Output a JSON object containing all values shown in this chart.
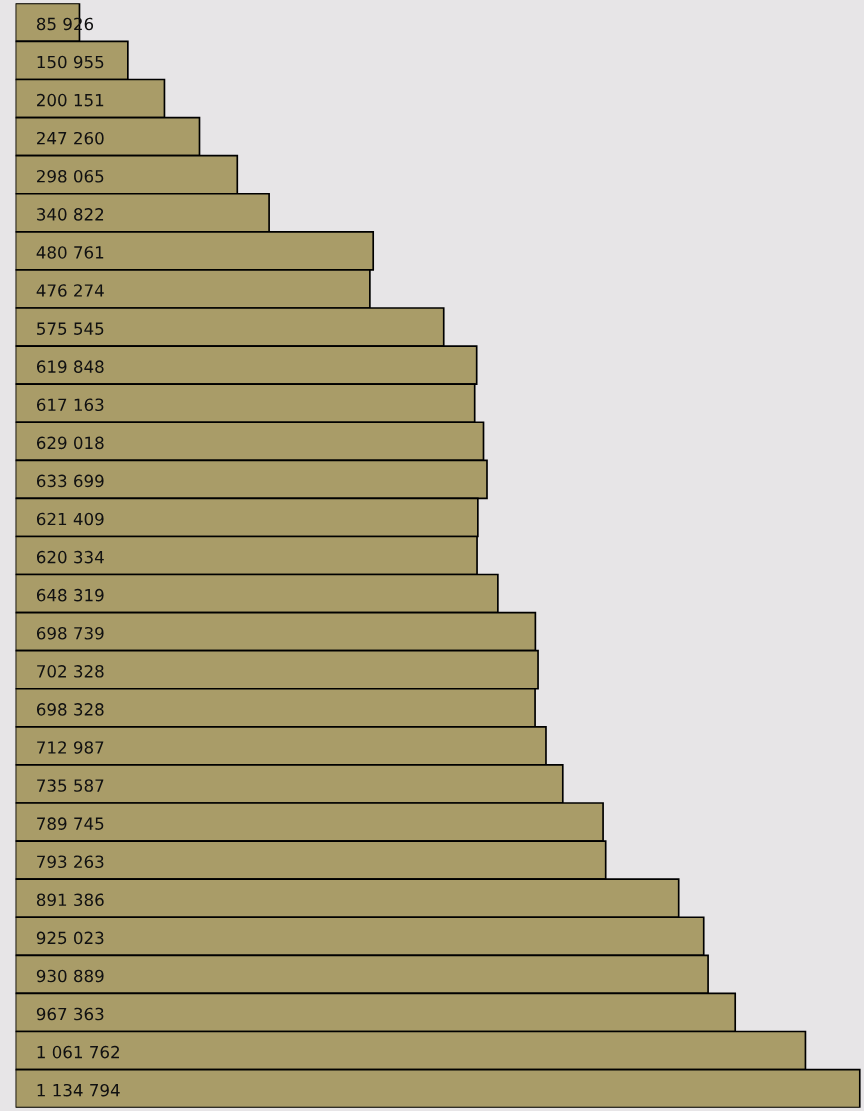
{
  "chart_data": {
    "type": "bar",
    "orientation": "horizontal",
    "categories": [
      null,
      null,
      null,
      null,
      null,
      null,
      null,
      null,
      null,
      null,
      null,
      null,
      null,
      null,
      null,
      null,
      null,
      null,
      null,
      null,
      null,
      null,
      null,
      null,
      null,
      null,
      null,
      null,
      null
    ],
    "values": [
      85926,
      150955,
      200151,
      247260,
      298065,
      340822,
      480761,
      476274,
      575545,
      619848,
      617163,
      629018,
      633699,
      621409,
      620334,
      648319,
      698739,
      702328,
      698328,
      712987,
      735587,
      789745,
      793263,
      891386,
      925023,
      930889,
      967363,
      1061762,
      1134794
    ],
    "value_labels": [
      "85 926",
      "150 955",
      "200 151",
      "247 260",
      "298 065",
      "340 822",
      "480 761",
      "476 274",
      "575 545",
      "619 848",
      "617 163",
      "629 018",
      "633 699",
      "621 409",
      "620 334",
      "648 319",
      "698 739",
      "702 328",
      "698 328",
      "712 987",
      "735 587",
      "789 745",
      "793 263",
      "891 386",
      "925 023",
      "930 889",
      "967 363",
      "1 061 762",
      "1 134 794"
    ],
    "color": "#a99c68"
  }
}
